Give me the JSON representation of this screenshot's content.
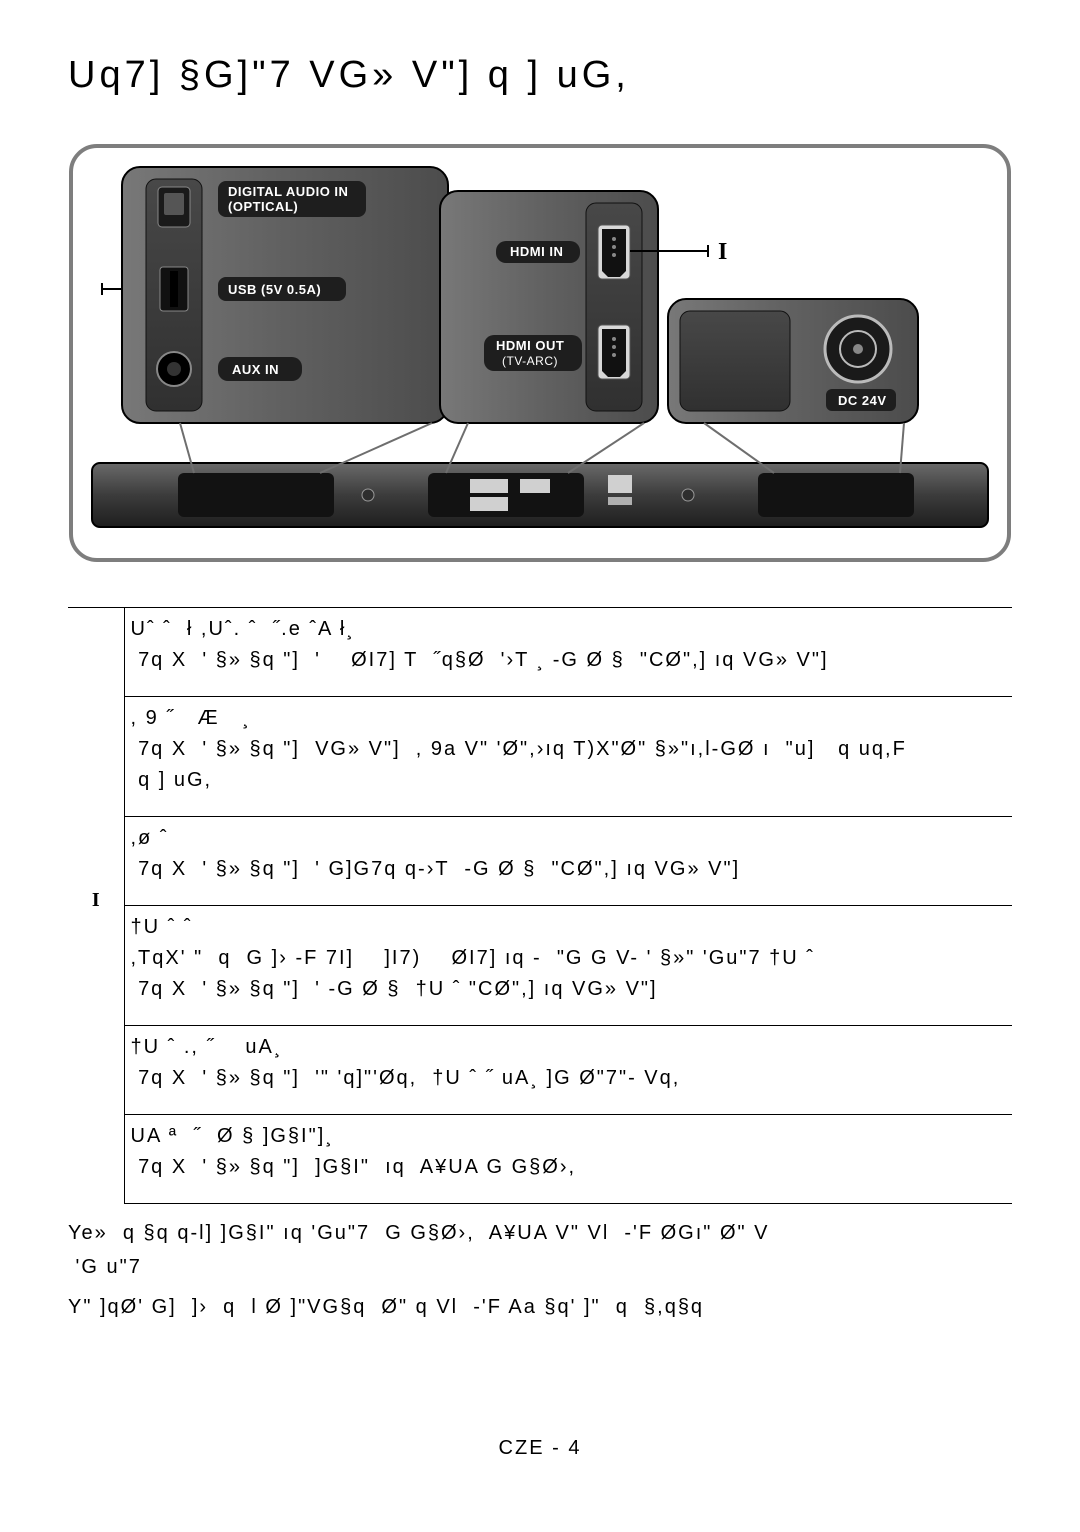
{
  "title": "Uq7]  §G]\"7 VG» V\"]   q ] uG,",
  "figure": {
    "digital_audio_label_l1": "DIGITAL AUDIO IN",
    "digital_audio_label_l2": "(OPTICAL)",
    "usb_label": "USB (5V 0.5A)",
    "aux_label": "AUX IN",
    "hdmi_in_label": "HDMI IN",
    "hdmi_out_label_l1": "HDMI OUT",
    "hdmi_out_label_l2": "(TV-ARC)",
    "dc_label": "DC 24V",
    "callout_marker": "I",
    "colors": {
      "outer_border": "#7e7e7e",
      "panel_mid": "#606060",
      "panel_dark": "#4a4a4a",
      "panel_light": "#a4a4a4",
      "inset_bg": "#3c3c3c",
      "pill_bg": "#1e1e1e",
      "bar_grad_top": "#5c5c5c",
      "bar_grad_bot": "#2a2a2a",
      "callout_bg": "#ffffff"
    }
  },
  "table": {
    "rows": [
      {
        "title": "Uˆ ˆ  ł ,Uˆ. ˆ  ˝.e ˆA ł¸",
        "body": " 7q X  ' §» §q \"]  '    ØI7] T  ˝q§Ø  '›T ¸ -G Ø §  \"CØ\",] ıq VG» V\"]"
      },
      {
        "title": ", 9 ˝   Æ   ¸",
        "body": " 7q X  ' §» §q \"]  VG» V\"]  , 9a V\" 'Ø\",›ıq T)X\"Ø\" §»\"ı,l-GØ ı  \"u]   q uq,F\n q ] uG,"
      },
      {
        "title": ",ø ˆ",
        "body": " 7q X  ' §» §q \"]  ' G]G7q q-›T  -G Ø §  \"CØ\",] ıq VG» V\"]"
      },
      {
        "title": "†U ˆ ˆ",
        "body": ",TqX' \"  q  G ]› -F 7I]    ]I7)    ØI7] ıq -  \"G G V- ' §»\" 'Gu\"7 †U ˆ\n 7q X  ' §» §q \"]  ' -G Ø §  †U ˆ \"CØ\",] ıq VG» V\"]"
      },
      {
        "title": "†U ˆ ., ˝    uA¸",
        "body": " 7q X  ' §» §q \"]  '\" 'q]\"'Øq,  †U ˆ ˝ uA¸ ]G Ø\"7\"- Vq,"
      },
      {
        "title": "UA ª  ˝  Ø § ]G§I\"]¸",
        "body": " 7q X  ' §» §q \"]  ]G§I\"  ıq  A¥UA G G§Ø›,"
      }
    ],
    "index_label": "I",
    "index_row": 3
  },
  "notes": [
    "Ye»  q §q q-l] ]G§I\" ıq 'Gu\"7  G G§Ø›,  A¥UA V\" Vl  -'F ØGı\" Ø\" V\n 'G u\"7",
    "Y\" ]qØ' G]  ]›  q  l Ø ]\"VG§q  Ø\" q Vl  -'F Aa §q' ]\"  q  §,q§q"
  ],
  "footer": "CZE - 4"
}
